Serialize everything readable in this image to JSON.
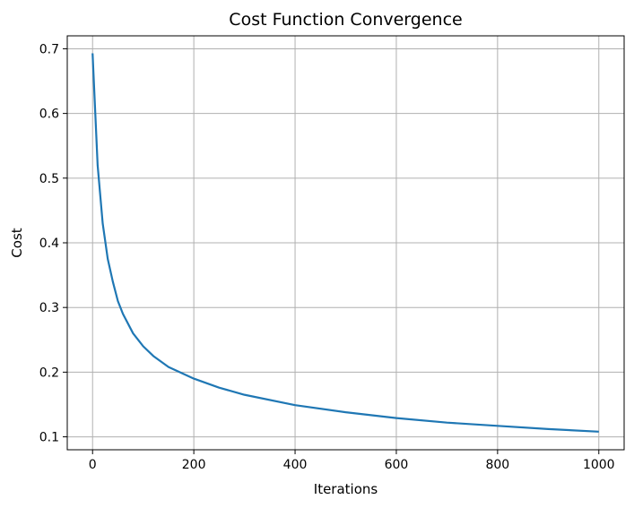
{
  "chart_data": {
    "type": "line",
    "title": "Cost Function Convergence",
    "xlabel": "Iterations",
    "ylabel": "Cost",
    "xlim": [
      -50,
      1050
    ],
    "ylim": [
      0.08,
      0.72
    ],
    "xticks": [
      0,
      200,
      400,
      600,
      800,
      1000
    ],
    "yticks": [
      0.1,
      0.2,
      0.3,
      0.4,
      0.5,
      0.6,
      0.7
    ],
    "grid": true,
    "line_color": "#1f77b4",
    "series": [
      {
        "x": [
          0,
          10,
          20,
          30,
          40,
          50,
          60,
          80,
          100,
          120,
          150,
          200,
          250,
          300,
          400,
          500,
          600,
          700,
          800,
          900,
          1000
        ],
        "values": [
          0.693,
          0.52,
          0.43,
          0.375,
          0.34,
          0.31,
          0.29,
          0.26,
          0.24,
          0.225,
          0.208,
          0.19,
          0.176,
          0.165,
          0.149,
          0.138,
          0.129,
          0.122,
          0.117,
          0.112,
          0.108
        ]
      }
    ]
  }
}
